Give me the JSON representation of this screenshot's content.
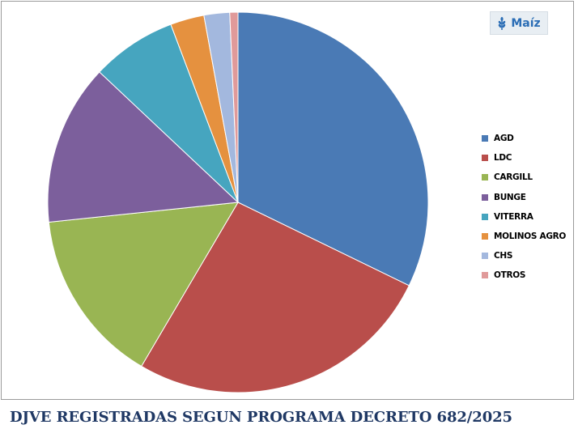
{
  "tag": {
    "label": "Maíz",
    "icon": "wheat-icon",
    "color": "#2a6db5"
  },
  "footer_title": "DJVE REGISTRADAS SEGUN PROGRAMA DECRETO 682/2025",
  "chart_data": {
    "type": "pie",
    "title": "",
    "series": [
      {
        "name": "AGD",
        "value": 32.5,
        "color": "#4a7ab5"
      },
      {
        "name": "LDC",
        "value": 26.5,
        "color": "#b94e4b"
      },
      {
        "name": "CARGILL",
        "value": 15.0,
        "color": "#99b553"
      },
      {
        "name": "BUNGE",
        "value": 13.8,
        "color": "#7c5f9c"
      },
      {
        "name": "VITERRA",
        "value": 7.3,
        "color": "#46a5bf"
      },
      {
        "name": "MOLINOS AGRO",
        "value": 2.9,
        "color": "#e5913f"
      },
      {
        "name": "CHS",
        "value": 2.2,
        "color": "#a3b8de"
      },
      {
        "name": "OTROS",
        "value": 0.7,
        "color": "#e09a9a"
      }
    ],
    "legend_position": "right",
    "start_angle": "12 o'clock",
    "direction": "clockwise"
  }
}
